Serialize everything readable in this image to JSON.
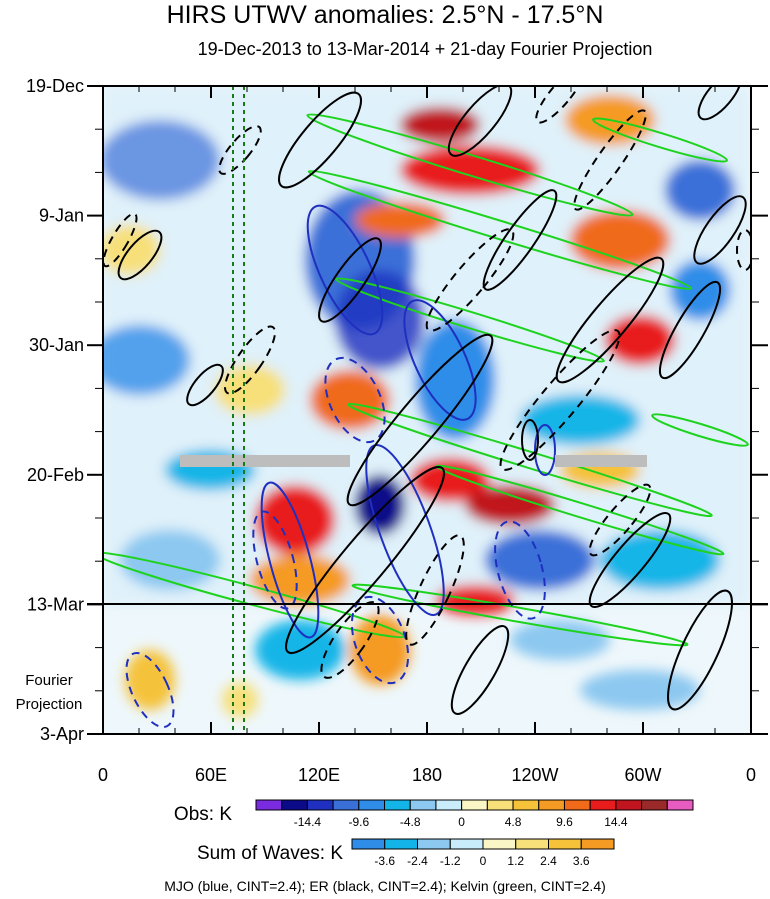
{
  "chart_data": {
    "type": "heatmap",
    "title": "HIRS UTWV anomalies: 2.5°N - 17.5°N",
    "subtitle": "19-Dec-2013 to 13-Mar-2014 + 21-day Fourier Projection",
    "xlabel": "",
    "ylabel": "",
    "x_ticks": [
      "0",
      "60E",
      "120E",
      "180",
      "120W",
      "60W",
      "0"
    ],
    "y_ticks": [
      "19-Dec",
      "9-Jan",
      "30-Jan",
      "20-Feb",
      "13-Mar",
      "3-Apr"
    ],
    "projection_label": [
      "Fourier",
      "Projection"
    ],
    "obs_colorbar": {
      "label": "Obs: K",
      "tick_labels": [
        "-14.4",
        "-9.6",
        "-4.8",
        "0",
        "4.8",
        "9.6",
        "14.4"
      ],
      "colors": [
        "#7a2be0",
        "#0b0b8a",
        "#1f2fbf",
        "#3a6fd8",
        "#2f8de8",
        "#13b5e8",
        "#8cc8f0",
        "#c9ecfa",
        "#fbf6c6",
        "#f7e07a",
        "#f5c23a",
        "#f59a23",
        "#f06a1a",
        "#e81c1c",
        "#c0141e",
        "#9a2a2a",
        "#e75cc0"
      ]
    },
    "waves_colorbar": {
      "label": "Sum of Waves: K",
      "tick_labels": [
        "-3.6",
        "-2.4",
        "-1.2",
        "0",
        "1.2",
        "2.4",
        "3.6"
      ],
      "colors": [
        "#2f8de8",
        "#13b5e8",
        "#8cc8f0",
        "#c9ecfa",
        "#fbf6c6",
        "#f7e07a",
        "#f5c23a",
        "#f59a23"
      ]
    },
    "contours": [
      {
        "name": "MJO",
        "color": "#1f2fbf",
        "cint": 2.4
      },
      {
        "name": "ER",
        "color": "#000000",
        "cint": 2.4
      },
      {
        "name": "Kelvin",
        "color": "#1ed31e",
        "cint": 2.4
      }
    ],
    "footer": "MJO (blue, CINT=2.4); ER (black, CINT=2.4); Kelvin (green, CINT=2.4)"
  }
}
